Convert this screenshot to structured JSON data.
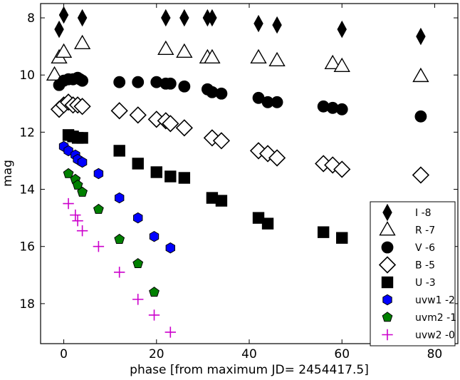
{
  "chart_data": {
    "type": "scatter",
    "xlabel": "phase [from maximum JD= 2454417.5]",
    "ylabel": "mag",
    "xlim": [
      -5,
      85
    ],
    "ylim": [
      19.4,
      7.5
    ],
    "y_inverted": true,
    "xticks": [
      0,
      20,
      40,
      60,
      80
    ],
    "yticks": [
      8,
      10,
      12,
      14,
      16,
      18
    ],
    "grid": false,
    "legend_position": "bottom-right",
    "series": [
      {
        "name": "I  -8",
        "marker": "diamond",
        "color": "#000000",
        "filled": true,
        "x": [
          -1,
          0,
          4,
          22,
          26,
          31,
          32,
          42,
          46,
          60,
          77
        ],
        "y": [
          8.4,
          7.9,
          8.0,
          8.0,
          8.0,
          8.0,
          8.0,
          8.2,
          8.25,
          8.4,
          8.65
        ]
      },
      {
        "name": "R -7",
        "marker": "triangle",
        "color": "#000000",
        "filled": false,
        "x": [
          -2,
          -1,
          0,
          4,
          22,
          26,
          31,
          32,
          42,
          46,
          58,
          60,
          77
        ],
        "y": [
          10.0,
          9.4,
          9.2,
          8.9,
          9.1,
          9.2,
          9.4,
          9.4,
          9.4,
          9.5,
          9.6,
          9.7,
          10.05
        ]
      },
      {
        "name": "V -6",
        "marker": "circle",
        "color": "#000000",
        "filled": true,
        "x": [
          -1,
          0,
          1,
          2,
          3,
          3.5,
          4,
          12,
          16,
          20,
          22,
          23,
          26,
          31,
          32,
          34,
          42,
          44,
          46,
          56,
          58,
          60,
          77
        ],
        "y": [
          10.35,
          10.2,
          10.15,
          10.15,
          10.1,
          10.15,
          10.2,
          10.25,
          10.25,
          10.25,
          10.3,
          10.3,
          10.4,
          10.5,
          10.6,
          10.65,
          10.8,
          10.95,
          10.95,
          11.1,
          11.15,
          11.2,
          11.45
        ]
      },
      {
        "name": "B -5",
        "marker": "diamond-open",
        "color": "#000000",
        "filled": false,
        "x": [
          -1,
          0,
          1,
          2,
          3,
          4,
          12,
          16,
          20,
          22,
          23,
          26,
          32,
          34,
          42,
          44,
          46,
          56,
          58,
          60,
          77
        ],
        "y": [
          11.2,
          11.05,
          10.95,
          11.05,
          11.05,
          11.1,
          11.25,
          11.4,
          11.55,
          11.6,
          11.7,
          11.85,
          12.2,
          12.3,
          12.65,
          12.75,
          12.9,
          13.1,
          13.15,
          13.3,
          13.5
        ]
      },
      {
        "name": "U -3",
        "marker": "square",
        "color": "#000000",
        "filled": true,
        "x": [
          1,
          2,
          3,
          4,
          12,
          16,
          20,
          23,
          26,
          32,
          34,
          42,
          44,
          56,
          60
        ],
        "y": [
          12.1,
          12.15,
          12.2,
          12.2,
          12.65,
          13.1,
          13.4,
          13.55,
          13.6,
          14.3,
          14.4,
          15.0,
          15.2,
          15.5,
          15.7
        ]
      },
      {
        "name": "uvw1 -2",
        "marker": "hexagon",
        "color": "#0000ff",
        "filled": true,
        "x": [
          0,
          1,
          2.5,
          3,
          4,
          7.5,
          12,
          16,
          19.5,
          23
        ],
        "y": [
          12.5,
          12.65,
          12.8,
          12.95,
          13.05,
          13.45,
          14.3,
          15.0,
          15.65,
          16.05
        ]
      },
      {
        "name": "uvm2 -1",
        "marker": "pentagon",
        "color": "#008000",
        "filled": true,
        "x": [
          1,
          2.5,
          3,
          4,
          7.5,
          12,
          16,
          19.5
        ],
        "y": [
          13.45,
          13.65,
          13.85,
          14.1,
          14.7,
          15.75,
          16.6,
          17.6
        ]
      },
      {
        "name": "uvw2 -0",
        "marker": "plus",
        "color": "#cc00cc",
        "filled": false,
        "x": [
          1,
          2.5,
          3,
          4,
          7.5,
          12,
          16,
          19.5,
          23
        ],
        "y": [
          14.5,
          14.9,
          15.1,
          15.45,
          16.0,
          16.9,
          17.85,
          18.4,
          19.0
        ]
      }
    ]
  }
}
